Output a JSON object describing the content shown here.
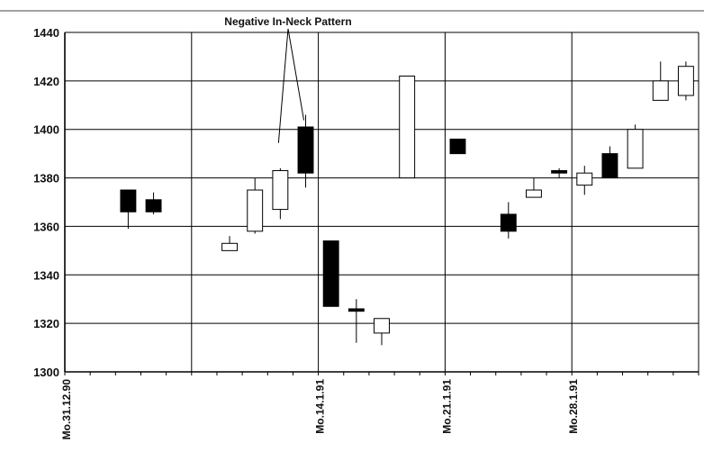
{
  "chart_data": {
    "type": "candlestick",
    "title": "",
    "xlabel": "",
    "ylabel": "",
    "ylim": [
      1300,
      1440
    ],
    "y_ticks": [
      1300,
      1320,
      1340,
      1360,
      1380,
      1400,
      1420,
      1440
    ],
    "y_tick_labels": [
      "1300",
      "1320",
      "1340",
      "1360",
      "1380",
      "1400",
      "1420",
      "1440"
    ],
    "grid": true,
    "x_labels": [
      {
        "text": "Mo.31.12.90",
        "slot": 0
      },
      {
        "text": "Mo.14.1.91",
        "slot": 10
      },
      {
        "text": "Mo.21.1.91",
        "slot": 15
      },
      {
        "text": "Mo.28.1.91",
        "slot": 20
      }
    ],
    "x_slots": 25,
    "vertical_grid_slots": [
      0,
      5,
      10,
      15,
      20,
      25
    ],
    "candles": [
      {
        "slot": 2,
        "open": 1366,
        "close": 1375,
        "high": 1375,
        "low": 1359,
        "color": "black"
      },
      {
        "slot": 3,
        "open": 1366,
        "close": 1371,
        "high": 1374,
        "low": 1365,
        "color": "black"
      },
      {
        "slot": 6,
        "open": 1350,
        "close": 1353,
        "high": 1356,
        "low": 1350,
        "color": "white"
      },
      {
        "slot": 7,
        "open": 1358,
        "close": 1375,
        "high": 1380,
        "low": 1357,
        "color": "white"
      },
      {
        "slot": 8,
        "open": 1367,
        "close": 1383,
        "high": 1384,
        "low": 1363,
        "color": "white"
      },
      {
        "slot": 9,
        "open": 1401,
        "close": 1382,
        "high": 1406,
        "low": 1376,
        "color": "black"
      },
      {
        "slot": 10,
        "open": 1354,
        "close": 1327,
        "high": 1354,
        "low": 1327,
        "color": "black"
      },
      {
        "slot": 11,
        "open": 1326,
        "close": 1325,
        "high": 1330,
        "low": 1312,
        "color": "black"
      },
      {
        "slot": 12,
        "open": 1316,
        "close": 1322,
        "high": 1322,
        "low": 1311,
        "color": "white"
      },
      {
        "slot": 13,
        "open": 1380,
        "close": 1422,
        "high": 1422,
        "low": 1380,
        "color": "white"
      },
      {
        "slot": 15,
        "open": 1396,
        "close": 1390,
        "high": 1396,
        "low": 1390,
        "color": "black"
      },
      {
        "slot": 17,
        "open": 1365,
        "close": 1358,
        "high": 1370,
        "low": 1355,
        "color": "black"
      },
      {
        "slot": 18,
        "open": 1372,
        "close": 1375,
        "high": 1380,
        "low": 1372,
        "color": "white"
      },
      {
        "slot": 19,
        "open": 1383,
        "close": 1382,
        "high": 1384,
        "low": 1380,
        "color": "black"
      },
      {
        "slot": 20,
        "open": 1377,
        "close": 1382,
        "high": 1385,
        "low": 1373,
        "color": "white"
      },
      {
        "slot": 21,
        "open": 1390,
        "close": 1380,
        "high": 1393,
        "low": 1380,
        "color": "black"
      },
      {
        "slot": 22,
        "open": 1384,
        "close": 1400,
        "high": 1402,
        "low": 1384,
        "color": "white"
      },
      {
        "slot": 23,
        "open": 1412,
        "close": 1420,
        "high": 1428,
        "low": 1412,
        "color": "white"
      },
      {
        "slot": 24,
        "open": 1414,
        "close": 1426,
        "high": 1428,
        "low": 1412,
        "color": "white"
      }
    ],
    "annotations": [
      {
        "text": "Negative In-Neck Pattern",
        "points_to_slots": [
          8,
          9
        ]
      }
    ]
  }
}
